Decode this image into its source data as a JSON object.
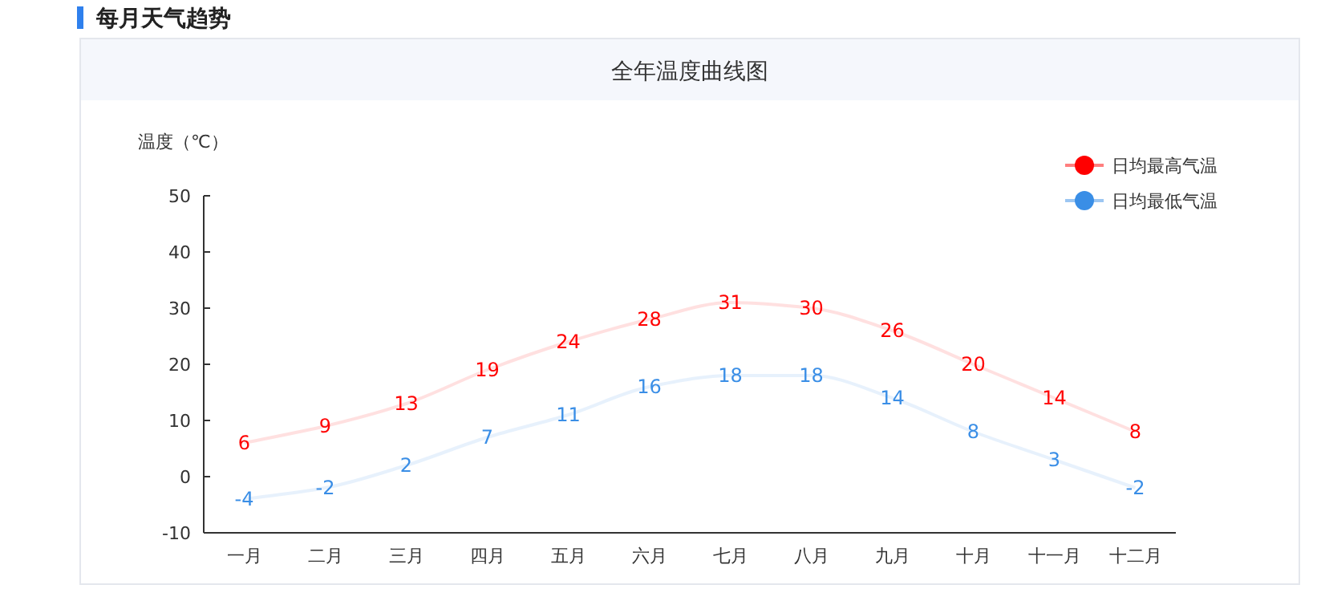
{
  "chart_data": {
    "type": "line",
    "title": "全年温度曲线图",
    "annotations": [
      "每月天气趋势"
    ],
    "ylabel": "温度（℃）",
    "categories": [
      "一月",
      "二月",
      "三月",
      "四月",
      "五月",
      "六月",
      "七月",
      "八月",
      "九月",
      "十月",
      "十一月",
      "十二月"
    ],
    "series": [
      {
        "name": "日均最高气温",
        "color": "#ff0000",
        "values": [
          6,
          9,
          13,
          19,
          24,
          28,
          31,
          30,
          26,
          20,
          14,
          8
        ]
      },
      {
        "name": "日均最低气温",
        "color": "#3a8ee6",
        "values": [
          -4,
          -2,
          2,
          7,
          11,
          16,
          18,
          18,
          14,
          8,
          3,
          -2
        ]
      }
    ],
    "ylim": [
      -10,
      50
    ],
    "yticks": [
      -10,
      0,
      10,
      20,
      30,
      40,
      50
    ],
    "data_labels": true,
    "legend": "top right",
    "grid": false,
    "marker": "none",
    "line_style": "solid"
  }
}
